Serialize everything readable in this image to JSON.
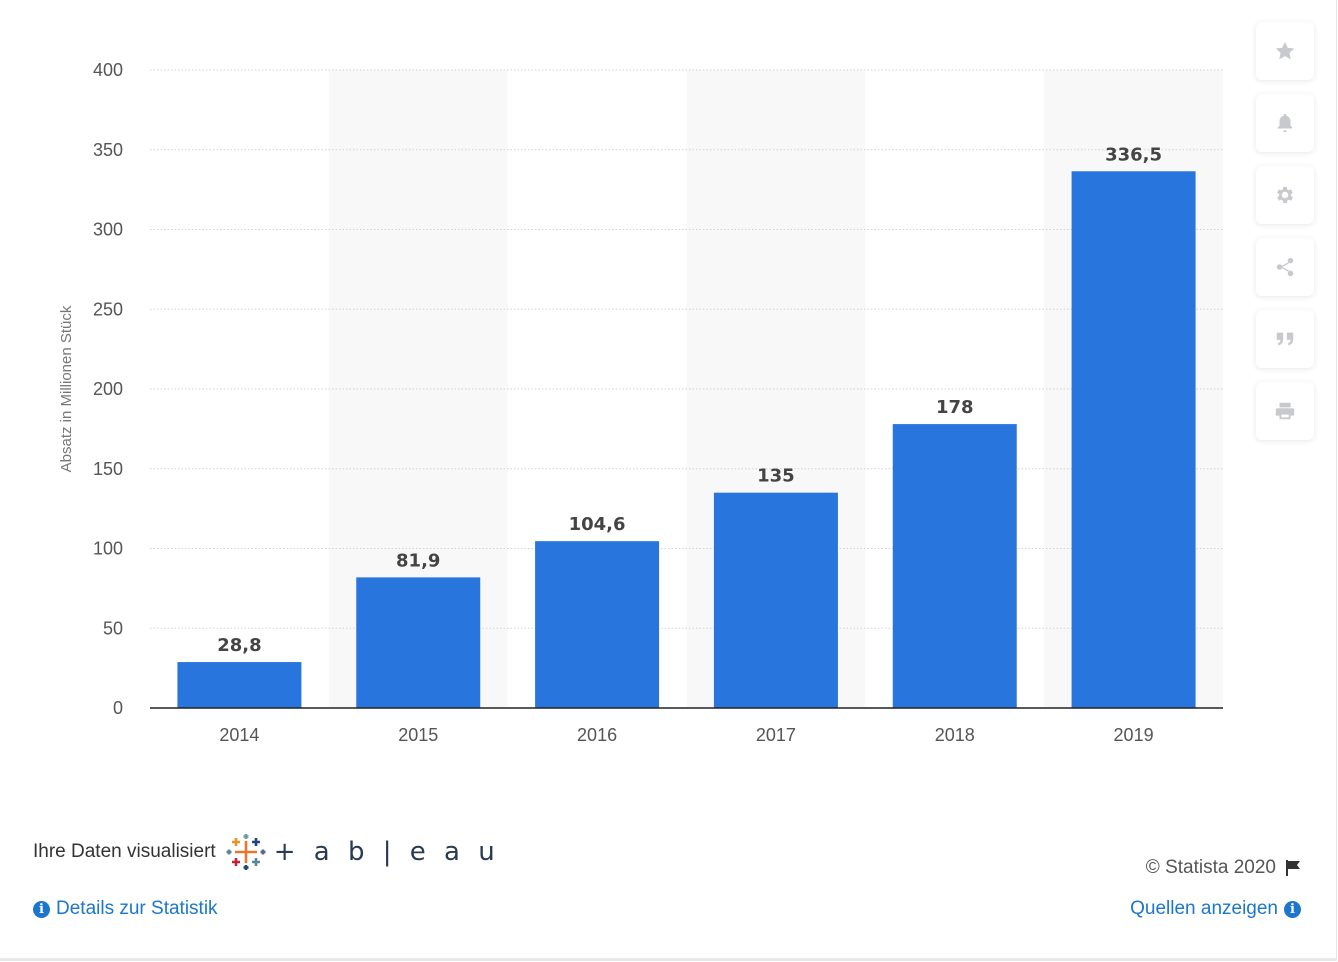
{
  "chart_data": {
    "type": "bar",
    "categories": [
      "2014",
      "2015",
      "2016",
      "2017",
      "2018",
      "2019"
    ],
    "values": [
      28.8,
      81.9,
      104.6,
      135,
      178,
      336.5
    ],
    "value_labels": [
      "28,8",
      "81,9",
      "104,6",
      "135",
      "178",
      "336,5"
    ],
    "ylabel": "Absatz in Millionen Stück",
    "ylim": [
      0,
      400
    ],
    "yticks": [
      0,
      50,
      100,
      150,
      200,
      250,
      300,
      350,
      400
    ],
    "grid": true,
    "bar_color": "#2876dd"
  },
  "toolbar": {
    "items": [
      "star-icon",
      "bell-icon",
      "gear-icon",
      "share-icon",
      "quote-icon",
      "print-icon"
    ]
  },
  "footer": {
    "visualized_text": "Ihre Daten visualisiert",
    "tableau_word": "+ a b | e a u",
    "details_link": "Details zur Statistik",
    "copyright": "© Statista 2020",
    "sources_link": "Quellen anzeigen"
  }
}
